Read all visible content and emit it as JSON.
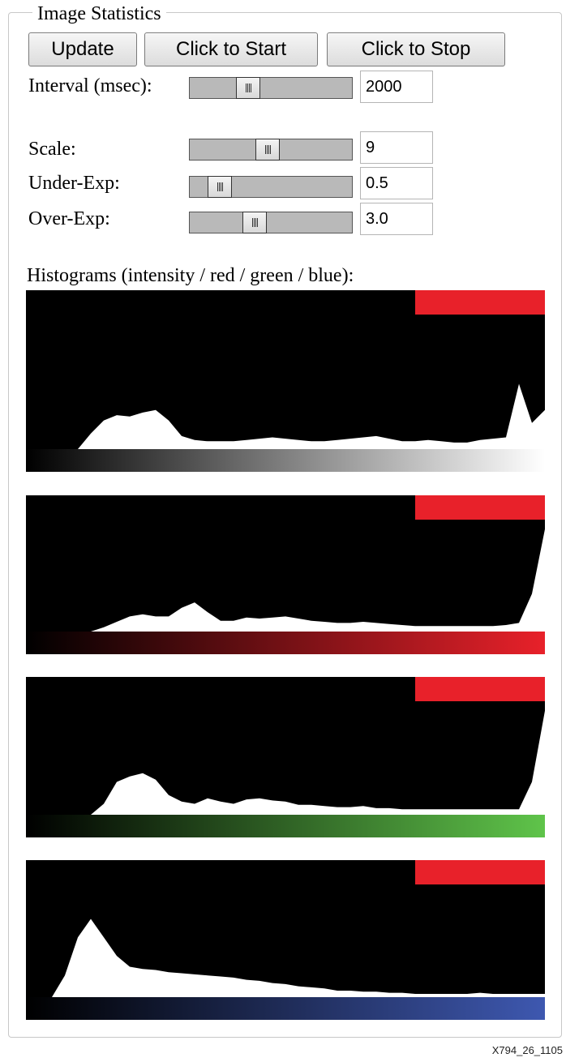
{
  "panel": {
    "title": "Image Statistics"
  },
  "buttons": {
    "update": "Update",
    "start": "Click to Start",
    "stop": "Click to Stop"
  },
  "controls": {
    "interval": {
      "label": "Interval (msec):",
      "value": "2000",
      "position": 0.33
    },
    "scale": {
      "label": "Scale:",
      "value": "9",
      "position": 0.47
    },
    "under_exp": {
      "label": "Under-Exp:",
      "value": "0.5",
      "position": 0.13
    },
    "over_exp": {
      "label": "Over-Exp:",
      "value": "3.0",
      "position": 0.38
    }
  },
  "histograms": {
    "heading": "Histograms (intensity / red / green / blue):",
    "colors": {
      "flag": "#e8212a",
      "intensity": "#ffffff",
      "red": "#e8212a",
      "green": "#5fc44a",
      "blue": "#3e58b0"
    },
    "channels": [
      {
        "name": "intensity",
        "profile": [
          0,
          0,
          0,
          0,
          0,
          0.12,
          0.22,
          0.26,
          0.25,
          0.28,
          0.3,
          0.22,
          0.1,
          0.07,
          0.06,
          0.06,
          0.06,
          0.07,
          0.08,
          0.09,
          0.08,
          0.07,
          0.06,
          0.06,
          0.07,
          0.08,
          0.09,
          0.1,
          0.08,
          0.06,
          0.06,
          0.07,
          0.06,
          0.05,
          0.05,
          0.07,
          0.08,
          0.09,
          0.5,
          0.2,
          0.3
        ]
      },
      {
        "name": "red",
        "profile": [
          0,
          0,
          0,
          0,
          0,
          0,
          0.04,
          0.09,
          0.14,
          0.16,
          0.14,
          0.14,
          0.22,
          0.27,
          0.18,
          0.1,
          0.1,
          0.13,
          0.12,
          0.13,
          0.14,
          0.12,
          0.1,
          0.09,
          0.08,
          0.08,
          0.09,
          0.08,
          0.07,
          0.06,
          0.05,
          0.05,
          0.05,
          0.05,
          0.05,
          0.05,
          0.05,
          0.06,
          0.08,
          0.35,
          0.95
        ]
      },
      {
        "name": "green",
        "profile": [
          0,
          0,
          0,
          0,
          0,
          0,
          0.1,
          0.3,
          0.35,
          0.38,
          0.32,
          0.18,
          0.12,
          0.1,
          0.15,
          0.12,
          0.1,
          0.14,
          0.15,
          0.13,
          0.12,
          0.09,
          0.09,
          0.08,
          0.07,
          0.07,
          0.08,
          0.06,
          0.06,
          0.05,
          0.05,
          0.05,
          0.05,
          0.05,
          0.05,
          0.05,
          0.05,
          0.05,
          0.05,
          0.3,
          0.95
        ]
      },
      {
        "name": "blue",
        "profile": [
          0,
          0,
          0,
          0.2,
          0.55,
          0.72,
          0.55,
          0.38,
          0.28,
          0.26,
          0.25,
          0.23,
          0.22,
          0.21,
          0.2,
          0.19,
          0.18,
          0.16,
          0.15,
          0.13,
          0.12,
          0.1,
          0.09,
          0.08,
          0.06,
          0.06,
          0.05,
          0.05,
          0.04,
          0.04,
          0.03,
          0.03,
          0.03,
          0.03,
          0.03,
          0.04,
          0.03,
          0.03,
          0.03,
          0.03,
          0.03
        ]
      }
    ]
  },
  "figure_code": "X794_26_1105"
}
